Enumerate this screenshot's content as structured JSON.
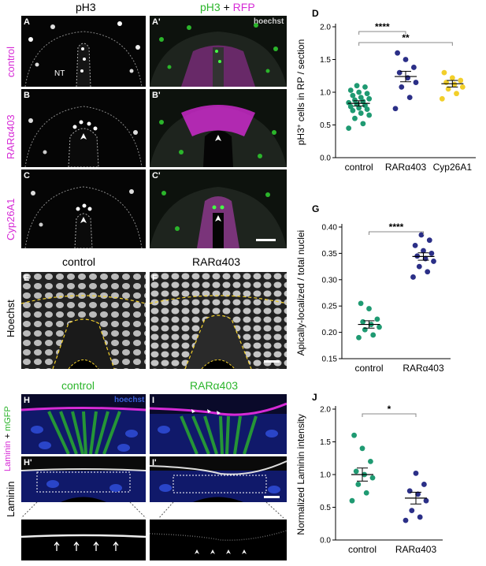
{
  "colors": {
    "magenta": "#d62ad6",
    "green": "#2bb52b",
    "teal": "#1f9a72",
    "navy": "#2b2f87",
    "yellow": "#f2cf2a",
    "hoechst_blue": "#3a5fd9"
  },
  "top": {
    "col1_header": "pH3",
    "col2_header_a": "pH3",
    "col2_header_plus": " + ",
    "col2_header_b": "RFP",
    "row_labels": [
      "control",
      "RARα403",
      "Cyp26A1"
    ],
    "panel_letters": [
      "A",
      "A'",
      "B",
      "B'",
      "C",
      "C'"
    ],
    "hoechst": "hoechst",
    "nt": "NT"
  },
  "mid": {
    "left_header": "control",
    "right_header": "RARα403",
    "row_label": "Hoechst",
    "panel_letters": [
      "E",
      "F"
    ]
  },
  "bottom": {
    "left_header": "control",
    "right_header": "RARα403",
    "row1_label_a": "Laminin",
    "row1_label_plus": " + ",
    "row1_label_b": "mGFP",
    "row2_label": "Laminin",
    "hoechst": "hoechst",
    "panel_letters": [
      "H",
      "I",
      "H'",
      "I'"
    ]
  },
  "chart_data": [
    {
      "panel": "D",
      "type": "scatter",
      "ylabel": "pH3+ cells in RP / section",
      "ylim": [
        0,
        2.0
      ],
      "yticks": [
        "0.0",
        "0.5",
        "1.0",
        "1.5",
        "2.0"
      ],
      "categories": [
        "control",
        "RARα403",
        "Cyp26A1"
      ],
      "series": [
        {
          "color": "#1f9a72",
          "mean": 0.83,
          "sem": 0.04,
          "values": [
            0.45,
            0.52,
            0.6,
            0.65,
            0.68,
            0.72,
            0.74,
            0.76,
            0.78,
            0.8,
            0.82,
            0.84,
            0.86,
            0.88,
            0.9,
            0.92,
            0.95,
            0.98,
            1.0,
            1.03,
            1.08,
            1.1
          ]
        },
        {
          "color": "#2b2f87",
          "mean": 1.24,
          "sem": 0.08,
          "values": [
            0.75,
            0.92,
            1.08,
            1.15,
            1.22,
            1.3,
            1.38,
            1.5,
            1.6
          ]
        },
        {
          "color": "#f2cf2a",
          "mean": 1.13,
          "sem": 0.05,
          "values": [
            0.9,
            0.98,
            1.05,
            1.08,
            1.12,
            1.15,
            1.18,
            1.22,
            1.3
          ]
        }
      ],
      "significance": [
        {
          "label": "****",
          "from": "control",
          "to": "RARα403"
        },
        {
          "label": "**",
          "from": "control",
          "to": "Cyp26A1"
        }
      ]
    },
    {
      "panel": "G",
      "type": "scatter",
      "ylabel": "Apically-localized / total nuclei",
      "ylim": [
        0.15,
        0.4
      ],
      "yticks": [
        "0.15",
        "0.20",
        "0.25",
        "0.30",
        "0.35",
        "0.40"
      ],
      "categories": [
        "control",
        "RARα403"
      ],
      "series": [
        {
          "color": "#1f9a72",
          "mean": 0.215,
          "sem": 0.007,
          "values": [
            0.19,
            0.195,
            0.205,
            0.21,
            0.215,
            0.22,
            0.225,
            0.245,
            0.255
          ]
        },
        {
          "color": "#2b2f87",
          "mean": 0.344,
          "sem": 0.007,
          "values": [
            0.305,
            0.315,
            0.325,
            0.335,
            0.34,
            0.345,
            0.35,
            0.355,
            0.365,
            0.375,
            0.385
          ]
        }
      ],
      "significance": [
        {
          "label": "****",
          "from": "control",
          "to": "RARα403"
        }
      ]
    },
    {
      "panel": "J",
      "type": "scatter",
      "ylabel": "Normalized Laminin intensity",
      "ylim": [
        0,
        2.0
      ],
      "yticks": [
        "0.0",
        "0.5",
        "1.0",
        "1.5",
        "2.0"
      ],
      "categories": [
        "control",
        "RARα403"
      ],
      "series": [
        {
          "color": "#1f9a72",
          "mean": 1.0,
          "sem": 0.1,
          "values": [
            0.6,
            0.72,
            0.85,
            0.95,
            1.0,
            1.05,
            1.2,
            1.4,
            1.6
          ]
        },
        {
          "color": "#2b2f87",
          "mean": 0.64,
          "sem": 0.09,
          "values": [
            0.3,
            0.35,
            0.45,
            0.6,
            0.7,
            0.75,
            0.85,
            1.02
          ]
        }
      ],
      "significance": [
        {
          "label": "*",
          "from": "control",
          "to": "RARα403"
        }
      ]
    }
  ]
}
